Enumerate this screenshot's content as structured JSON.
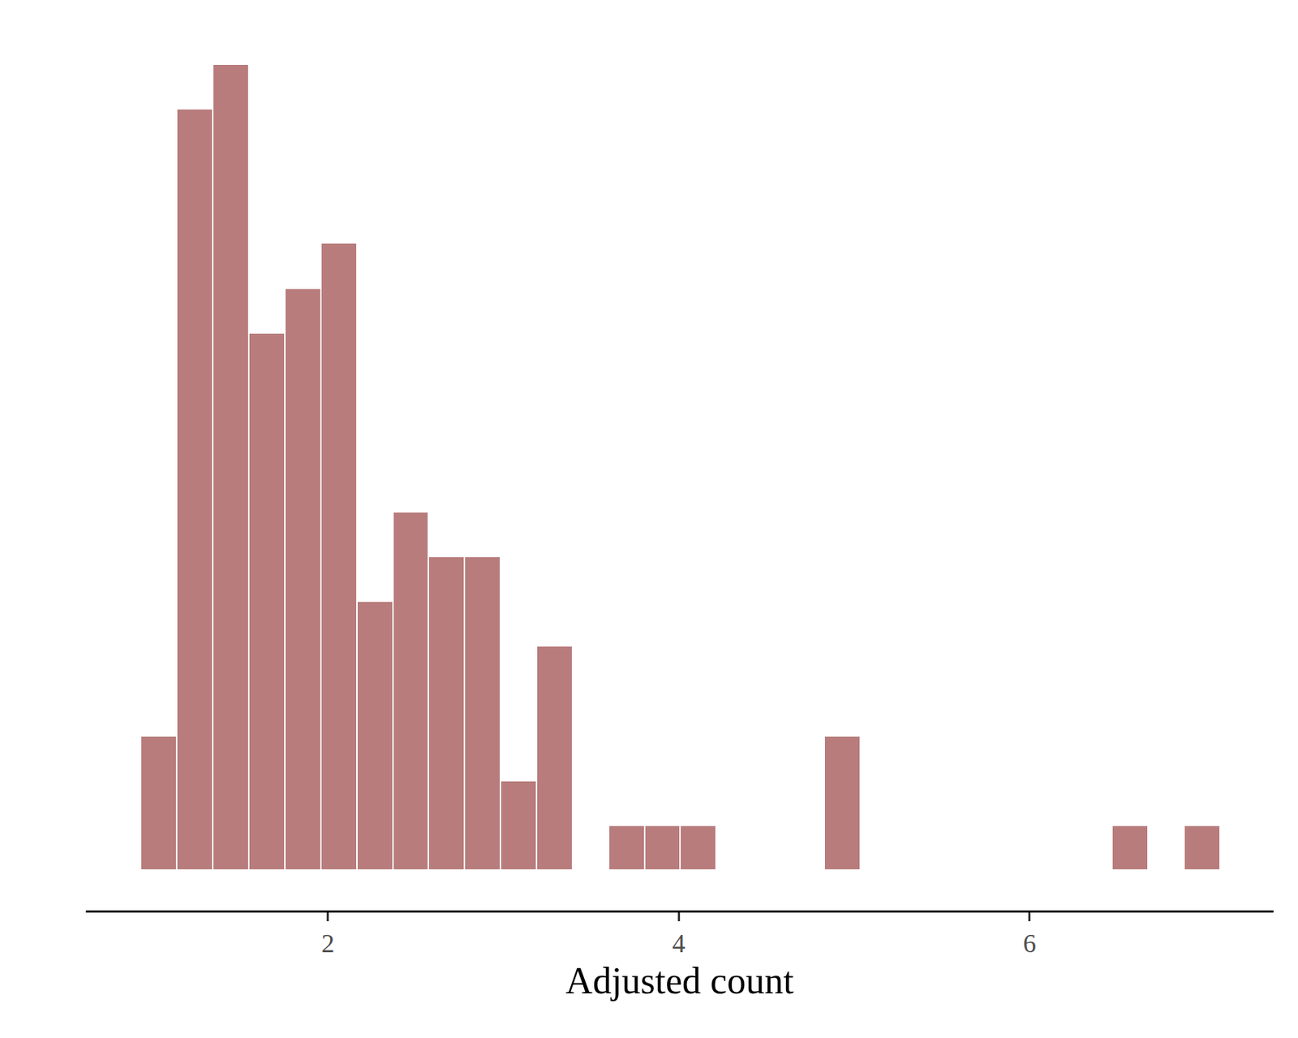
{
  "chart_data": {
    "type": "histogram",
    "x_label": "Adjusted count",
    "bins": [
      0.934,
      1.139,
      1.344,
      1.549,
      1.754,
      1.959,
      2.164,
      2.369,
      2.574,
      2.779,
      2.984,
      3.189,
      3.394,
      3.599,
      3.804,
      4.009,
      4.214,
      4.419,
      4.624,
      4.829,
      5.034,
      5.239,
      5.444,
      5.649,
      5.854,
      6.059,
      6.264,
      6.469,
      6.674,
      6.879,
      7.084
    ],
    "values": [
      3,
      17,
      18,
      12,
      13,
      14,
      6,
      8,
      7,
      7,
      2,
      5,
      0,
      1,
      1,
      1,
      0,
      0,
      0,
      3,
      0,
      0,
      0,
      0,
      0,
      0,
      0,
      1,
      0,
      1
    ],
    "color": "#b87c7c",
    "xlim": [
      0.62,
      7.39
    ],
    "xticks": [
      2,
      4,
      6
    ],
    "ylim": [
      -0.9,
      18.9
    ],
    "grid": false,
    "tick_labels": "x"
  }
}
